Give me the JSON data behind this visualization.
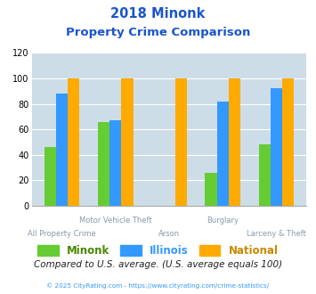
{
  "title_line1": "2018 Minonk",
  "title_line2": "Property Crime Comparison",
  "categories": [
    "All Property Crime",
    "Motor Vehicle Theft",
    "Arson",
    "Burglary",
    "Larceny & Theft"
  ],
  "minonk": [
    46,
    66,
    0,
    26,
    48
  ],
  "illinois": [
    88,
    67,
    0,
    82,
    92
  ],
  "national": [
    100,
    100,
    100,
    100,
    100
  ],
  "color_minonk": "#66cc33",
  "color_illinois": "#3399ff",
  "color_national": "#ffaa00",
  "ylim": [
    0,
    120
  ],
  "yticks": [
    0,
    20,
    40,
    60,
    80,
    100,
    120
  ],
  "bg_color": "#ccdde8",
  "title_color": "#1a55cc",
  "footer_text": "Compared to U.S. average. (U.S. average equals 100)",
  "footer_color": "#222222",
  "credit_text": "© 2025 CityRating.com - https://www.cityrating.com/crime-statistics/",
  "credit_color": "#3399ff",
  "legend_labels": [
    "Minonk",
    "Illinois",
    "National"
  ],
  "legend_label_colors": [
    "#448800",
    "#3399ff",
    "#cc8800"
  ],
  "bar_width": 0.22
}
